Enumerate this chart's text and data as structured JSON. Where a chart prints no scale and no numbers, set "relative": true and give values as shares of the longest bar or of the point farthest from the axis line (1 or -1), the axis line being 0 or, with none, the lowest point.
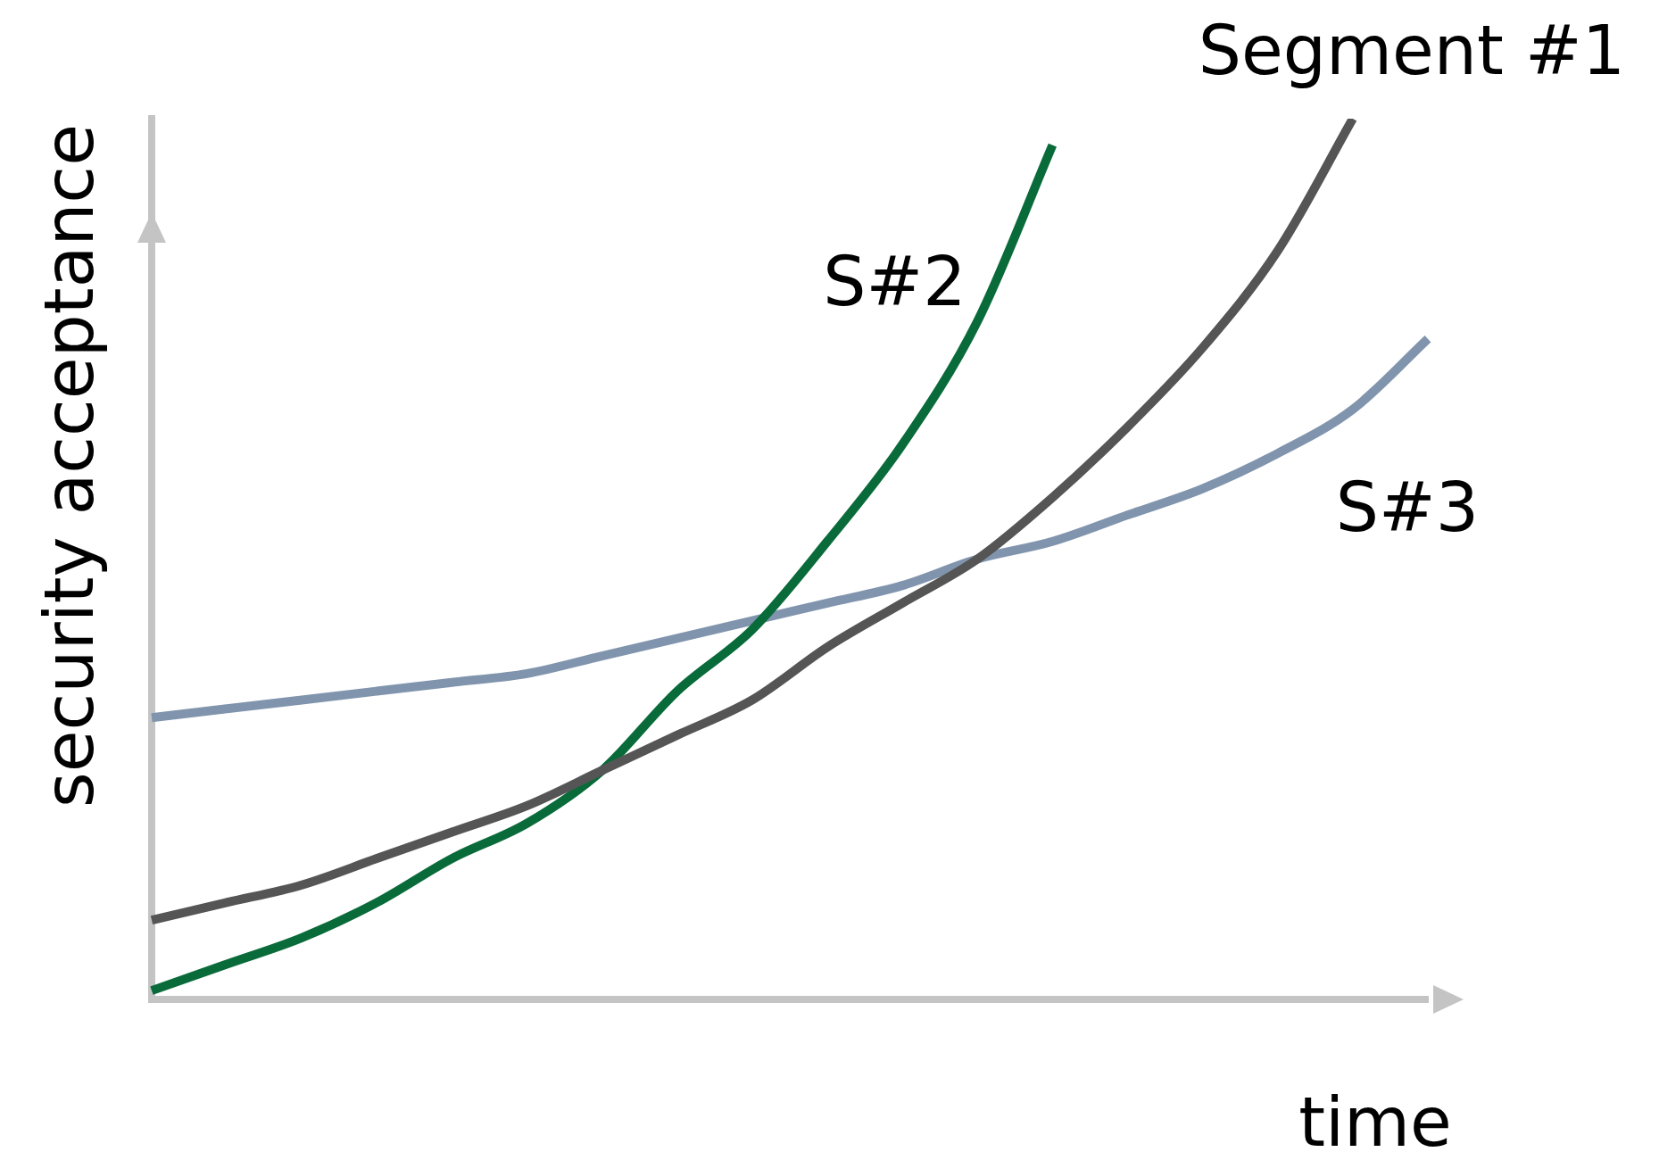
{
  "chart_data": {
    "type": "line",
    "xlabel": "time",
    "ylabel": "security acceptance",
    "relative": true,
    "grid": false,
    "legend": false,
    "marker": "none",
    "line_style": "solid",
    "categories": [
      null,
      null,
      null,
      null,
      null,
      null,
      null,
      null,
      null,
      null,
      null,
      null,
      null,
      null,
      null,
      null,
      null,
      null
    ],
    "series": [
      {
        "name": "Segment #1",
        "color": "#555555",
        "values": [
          0.09,
          0.11,
          0.13,
          0.16,
          0.19,
          0.22,
          0.26,
          0.3,
          0.34,
          0.4,
          0.45,
          0.5,
          0.57,
          0.65,
          0.74,
          0.85,
          1,
          null
        ]
      },
      {
        "name": "S#2",
        "color": "#0a6b3a",
        "values": [
          0.01,
          0.04,
          0.07,
          0.11,
          0.16,
          0.2,
          0.26,
          0.35,
          0.42,
          0.52,
          0.63,
          0.77,
          0.97,
          null,
          null,
          null,
          null,
          null
        ]
      },
      {
        "name": "S#3",
        "color": "#8095ad",
        "values": [
          0.32,
          0.33,
          0.34,
          0.35,
          0.36,
          0.37,
          0.39,
          0.41,
          0.43,
          0.45,
          0.47,
          0.5,
          0.52,
          0.55,
          0.58,
          0.62,
          0.67,
          0.75
        ]
      }
    ]
  }
}
